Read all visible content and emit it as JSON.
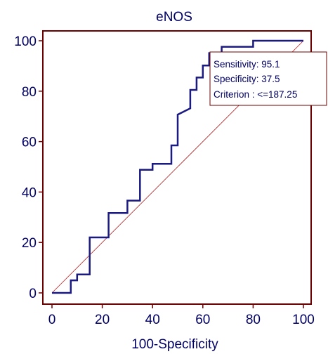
{
  "chart_data": {
    "type": "line",
    "title": "eNOS",
    "xlabel": "100-Specificity",
    "ylabel": "",
    "xlim": [
      0,
      100
    ],
    "ylim": [
      0,
      100
    ],
    "xticks": [
      "0",
      "20",
      "40",
      "60",
      "80",
      "100"
    ],
    "yticks": [
      "0",
      "20",
      "40",
      "60",
      "80",
      "100"
    ],
    "grid": false,
    "series": [
      {
        "values": [
          [
            0,
            0
          ],
          [
            7.5,
            0
          ],
          [
            7.5,
            5
          ],
          [
            10,
            5
          ],
          [
            10,
            7.3
          ],
          [
            15,
            7.3
          ],
          [
            15,
            22
          ],
          [
            22.5,
            22
          ],
          [
            22.5,
            31.7
          ],
          [
            30,
            31.7
          ],
          [
            30,
            36.6
          ],
          [
            35,
            36.6
          ],
          [
            35,
            48.8
          ],
          [
            40,
            48.8
          ],
          [
            40,
            51.2
          ],
          [
            47.5,
            51.2
          ],
          [
            47.5,
            58.5
          ],
          [
            50,
            58.5
          ],
          [
            50,
            70.7
          ],
          [
            55,
            73.2
          ],
          [
            55,
            80.5
          ],
          [
            57.5,
            80.5
          ],
          [
            57.5,
            85.4
          ],
          [
            60,
            85.4
          ],
          [
            60,
            90.2
          ],
          [
            62.5,
            90.2
          ],
          [
            62.5,
            95.1
          ],
          [
            67.5,
            95.1
          ],
          [
            67.5,
            97.6
          ],
          [
            80,
            97.6
          ],
          [
            80,
            100
          ],
          [
            100,
            100
          ]
        ]
      },
      {
        "values": [
          [
            0,
            0
          ],
          [
            100,
            100
          ]
        ]
      }
    ],
    "annotation": {
      "lines": [
        "Sensitivity: 95.1",
        "Specificity: 37.5",
        "Criterion : <=187.25"
      ]
    },
    "colors": {
      "frame": "#6b0000",
      "roc": "#1a1a80",
      "diagonal": "#b22222",
      "text": "#000066"
    }
  }
}
